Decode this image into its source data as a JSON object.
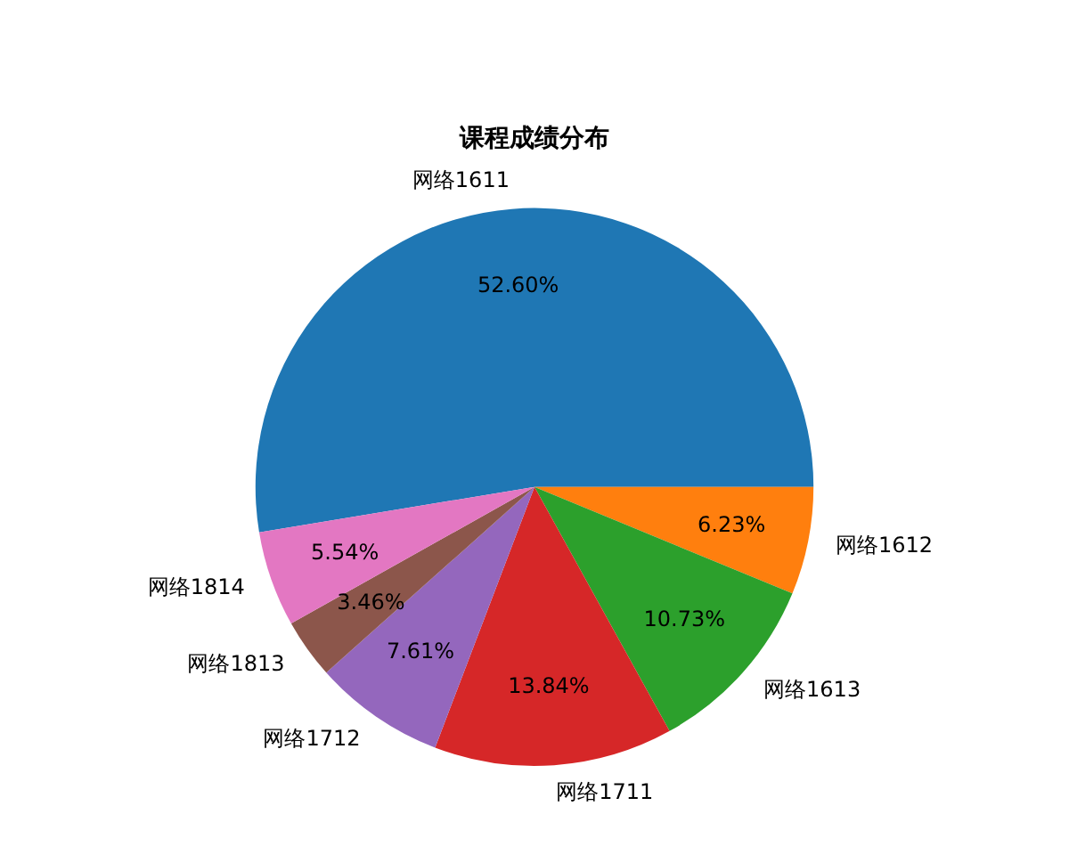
{
  "chart_data": {
    "type": "pie",
    "title": "课程成绩分布",
    "categories": [
      "网络1611",
      "网络1612",
      "网络1613",
      "网络1711",
      "网络1712",
      "网络1813",
      "网络1814"
    ],
    "values": [
      52.6,
      6.23,
      10.73,
      13.84,
      7.61,
      3.46,
      5.54
    ],
    "value_labels": [
      "52.60%",
      "6.23%",
      "10.73%",
      "13.84%",
      "7.61%",
      "3.46%",
      "5.54%"
    ],
    "colors": [
      "#1f77b4",
      "#ff7f0e",
      "#2ca02c",
      "#d62728",
      "#9467bd",
      "#8c564b",
      "#e377c2"
    ],
    "legend": false
  }
}
